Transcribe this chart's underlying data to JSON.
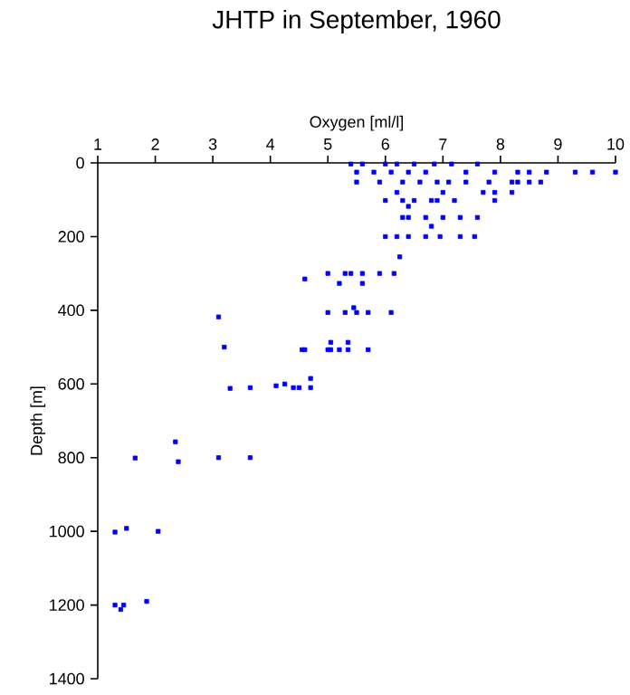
{
  "chart_data": {
    "type": "scatter",
    "title": "JHTP in September, 1960",
    "xlabel": "Oxygen [ml/l]",
    "ylabel": "Depth [m]",
    "xlim": [
      1,
      10
    ],
    "ylim": [
      1400,
      0
    ],
    "xticks": [
      1,
      2,
      3,
      4,
      5,
      6,
      7,
      8,
      9,
      10
    ],
    "yticks": [
      0,
      200,
      400,
      600,
      800,
      1000,
      1200,
      1400
    ],
    "marker": "square",
    "series": [
      {
        "color": "#0000ff",
        "x": [
          5.4,
          5.6,
          6.0,
          6.2,
          6.5,
          6.85,
          7.15,
          7.6,
          5.5,
          5.8,
          6.1,
          6.4,
          6.7,
          7.4,
          7.9,
          8.3,
          8.5,
          8.8,
          9.3,
          9.6,
          10.0,
          5.5,
          5.9,
          6.3,
          6.6,
          6.9,
          7.1,
          7.4,
          7.8,
          8.2,
          8.3,
          8.5,
          8.7,
          6.2,
          7.0,
          7.7,
          7.9,
          8.2,
          6.0,
          6.3,
          6.5,
          6.8,
          6.9,
          7.2,
          7.9,
          6.4,
          6.3,
          6.4,
          6.7,
          7.0,
          7.3,
          7.6,
          6.8,
          6.0,
          6.2,
          6.4,
          6.7,
          6.95,
          7.3,
          7.55,
          6.25,
          4.6,
          5.0,
          5.3,
          5.4,
          5.6,
          5.9,
          6.15,
          5.2,
          5.6,
          5.45,
          5.0,
          5.3,
          5.5,
          5.7,
          6.1,
          3.1,
          3.2,
          4.55,
          4.6,
          5.0,
          5.05,
          5.2,
          5.35,
          5.7,
          5.05,
          5.35,
          4.7,
          3.3,
          3.65,
          4.1,
          4.25,
          4.4,
          4.5,
          4.7,
          2.35,
          2.4,
          1.65,
          3.1,
          3.65,
          1.3,
          1.5,
          2.05,
          1.3,
          1.4,
          1.45,
          1.85
        ],
        "values": [
          3,
          3,
          3,
          3,
          3,
          3,
          3,
          3,
          25,
          25,
          25,
          25,
          25,
          25,
          25,
          25,
          25,
          25,
          25,
          25,
          25,
          52,
          52,
          52,
          52,
          52,
          52,
          52,
          52,
          52,
          52,
          52,
          52,
          80,
          80,
          80,
          80,
          80,
          102,
          102,
          102,
          102,
          102,
          102,
          102,
          118,
          148,
          148,
          148,
          148,
          148,
          148,
          172,
          200,
          200,
          200,
          200,
          200,
          200,
          200,
          255,
          315,
          300,
          300,
          300,
          300,
          300,
          300,
          327,
          327,
          393,
          406,
          406,
          406,
          406,
          406,
          418,
          500,
          507,
          507,
          507,
          507,
          507,
          507,
          507,
          487,
          487,
          585,
          612,
          610,
          605,
          600,
          610,
          610,
          610,
          757,
          811,
          801,
          800,
          800,
          1002,
          992,
          1000,
          1200,
          1212,
          1200,
          1190
        ]
      }
    ]
  }
}
